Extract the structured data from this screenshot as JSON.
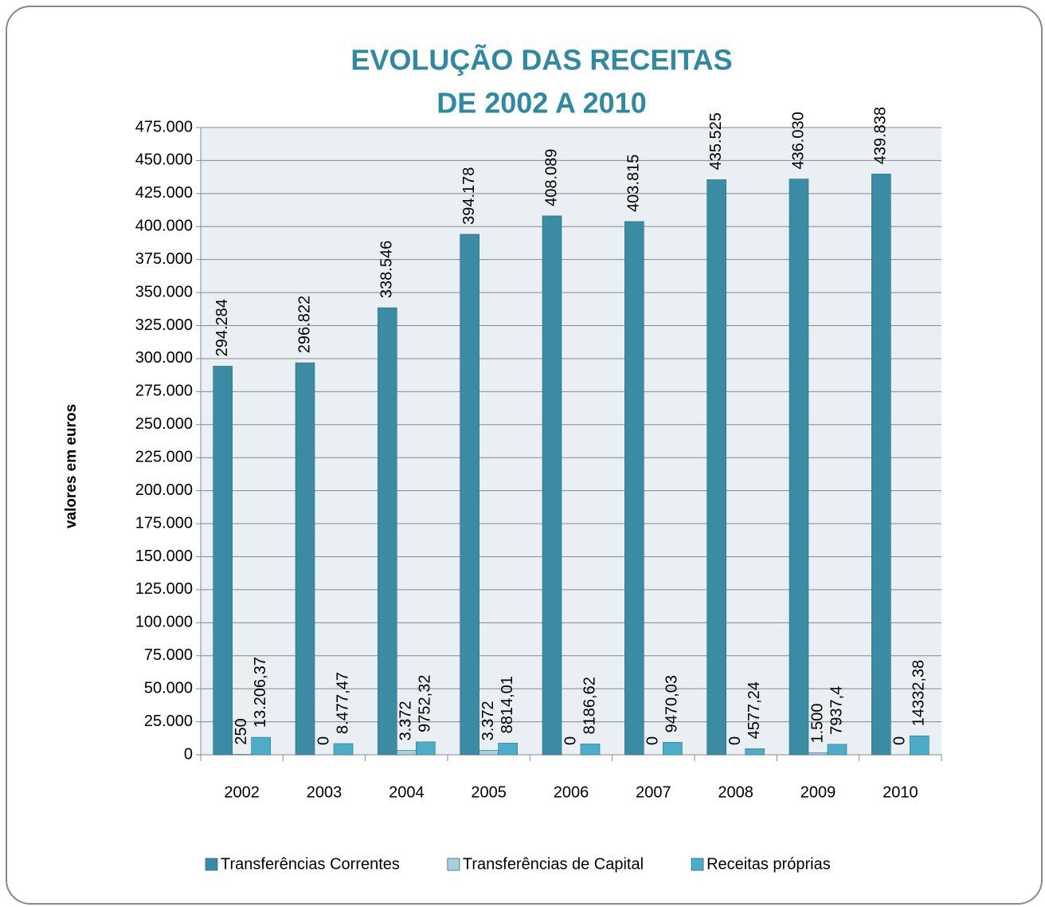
{
  "chart_data": {
    "type": "bar",
    "title": [
      "EVOLUÇÃO DAS RECEITAS",
      "DE 2002 A 2010"
    ],
    "y_label": "valores em euros",
    "categories": [
      "2002",
      "2003",
      "2004",
      "2005",
      "2006",
      "2007",
      "2008",
      "2009",
      "2010"
    ],
    "series": [
      {
        "name": "Transferências Correntes",
        "color": "#3a8ba3",
        "values": [
          294284,
          296822,
          338546,
          394178,
          408089,
          403815,
          435525,
          436030,
          439838
        ],
        "value_labels": [
          "294.284",
          "296.822",
          "338.546",
          "394.178",
          "408.089",
          "403.815",
          "435.525",
          "436.030",
          "439.838"
        ]
      },
      {
        "name": "Transferências de Capital",
        "color": "#a6d0da",
        "values": [
          250,
          0,
          3372,
          3372,
          0,
          0,
          0,
          1500,
          0
        ],
        "value_labels": [
          "250",
          "0",
          "3.372",
          "3.372",
          "0",
          "0",
          "0",
          "1.500",
          "0"
        ]
      },
      {
        "name": "Receitas próprias",
        "color": "#4badc7",
        "values": [
          13206.37,
          8477.47,
          9752.32,
          8814.01,
          8186.62,
          9470.03,
          4577.24,
          7937.4,
          14332.38
        ],
        "value_labels": [
          "13.206,37",
          "8.477,47",
          "9752,32",
          "8814,01",
          "8186,62",
          "9470,03",
          "4577,24",
          "7937,4",
          "14332,38"
        ]
      }
    ],
    "ylim": [
      0,
      475000
    ],
    "yticks": [
      0,
      {
        "value": 25000,
        "label": "25.000"
      },
      {
        "value": 50000,
        "label": "50.000"
      },
      {
        "value": 75000,
        "label": "75.000"
      },
      {
        "value": 100000,
        "label": "100.000"
      },
      {
        "value": 125000,
        "label": "125.000"
      },
      {
        "value": 150000,
        "label": "150.000"
      },
      {
        "value": 175000,
        "label": "175.000"
      },
      {
        "value": 200000,
        "label": "200.000"
      },
      {
        "value": 225000,
        "label": "225.000"
      },
      {
        "value": 250000,
        "label": "250.000"
      },
      {
        "value": 275000,
        "label": "275.000"
      },
      {
        "value": 300000,
        "label": "300.000"
      },
      {
        "value": 325000,
        "label": "325.000"
      },
      {
        "value": 350000,
        "label": "350.000"
      },
      {
        "value": 375000,
        "label": "375.000"
      },
      {
        "value": 400000,
        "label": "400.000"
      },
      {
        "value": 425000,
        "label": "425.000"
      },
      {
        "value": 450000,
        "label": "450.000"
      },
      {
        "value": 475000,
        "label": "475.000"
      }
    ],
    "grid": true,
    "legend": "bottom"
  }
}
